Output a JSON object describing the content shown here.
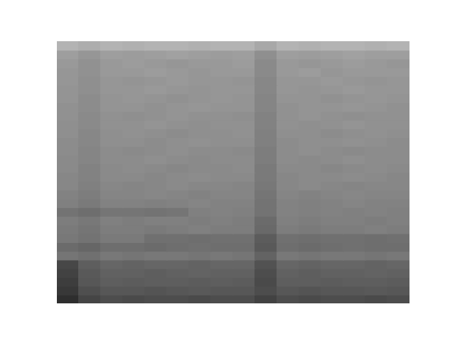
{
  "chart_data": {
    "type": "heatmap",
    "tick_labels": false,
    "grid": false,
    "zlim": [
      0,
      100
    ],
    "cells": [
      [
        30,
        32,
        30,
        31,
        30,
        30,
        31,
        30,
        30,
        34,
        30,
        31,
        30,
        30,
        31,
        30
      ],
      [
        38,
        41,
        38,
        39,
        38,
        37,
        38,
        39,
        38,
        44,
        38,
        39,
        38,
        37,
        38,
        38
      ],
      [
        40,
        43,
        40,
        39,
        40,
        41,
        40,
        40,
        39,
        46,
        40,
        41,
        40,
        39,
        40,
        41
      ],
      [
        41,
        43,
        40,
        40,
        39,
        40,
        41,
        40,
        40,
        46,
        40,
        39,
        41,
        40,
        40,
        40
      ],
      [
        41,
        44,
        41,
        42,
        41,
        40,
        41,
        41,
        42,
        47,
        41,
        41,
        40,
        41,
        42,
        41
      ],
      [
        42,
        44,
        41,
        41,
        40,
        41,
        42,
        41,
        41,
        47,
        41,
        42,
        41,
        40,
        41,
        41
      ],
      [
        42,
        45,
        42,
        41,
        42,
        43,
        42,
        41,
        42,
        48,
        42,
        42,
        43,
        42,
        41,
        42
      ],
      [
        43,
        45,
        42,
        42,
        43,
        42,
        41,
        42,
        42,
        48,
        43,
        42,
        42,
        41,
        42,
        43
      ],
      [
        43,
        46,
        43,
        44,
        43,
        42,
        43,
        43,
        44,
        49,
        43,
        42,
        43,
        44,
        43,
        43
      ],
      [
        44,
        46,
        43,
        43,
        42,
        43,
        44,
        43,
        43,
        49,
        43,
        44,
        43,
        42,
        43,
        43
      ],
      [
        44,
        47,
        44,
        43,
        44,
        45,
        44,
        44,
        43,
        50,
        44,
        44,
        45,
        44,
        43,
        44
      ],
      [
        45,
        47,
        44,
        44,
        45,
        44,
        43,
        44,
        44,
        50,
        45,
        44,
        44,
        43,
        44,
        45
      ],
      [
        45,
        48,
        45,
        46,
        45,
        44,
        45,
        45,
        46,
        51,
        45,
        44,
        45,
        46,
        45,
        45
      ],
      [
        46,
        48,
        45,
        45,
        44,
        45,
        46,
        45,
        45,
        51,
        45,
        46,
        45,
        44,
        45,
        45
      ],
      [
        46,
        49,
        46,
        45,
        46,
        47,
        46,
        46,
        45,
        52,
        46,
        46,
        47,
        46,
        45,
        46
      ],
      [
        47,
        49,
        46,
        46,
        47,
        46,
        45,
        46,
        46,
        52,
        47,
        46,
        46,
        45,
        46,
        47
      ],
      [
        47,
        50,
        47,
        48,
        47,
        46,
        47,
        47,
        48,
        53,
        47,
        46,
        47,
        48,
        47,
        47
      ],
      [
        49,
        51,
        48,
        48,
        47,
        48,
        49,
        48,
        48,
        54,
        48,
        49,
        48,
        47,
        48,
        48
      ],
      [
        50,
        52,
        49,
        49,
        50,
        49,
        48,
        49,
        49,
        55,
        49,
        50,
        49,
        48,
        49,
        49
      ],
      [
        55,
        57,
        54,
        54,
        55,
        54,
        50,
        49,
        50,
        55,
        49,
        50,
        49,
        50,
        49,
        50
      ],
      [
        51,
        53,
        50,
        51,
        50,
        50,
        51,
        50,
        51,
        58,
        50,
        51,
        50,
        50,
        51,
        50
      ],
      [
        52,
        54,
        51,
        51,
        52,
        51,
        50,
        51,
        51,
        59,
        51,
        52,
        51,
        51,
        50,
        51
      ],
      [
        53,
        55,
        52,
        52,
        56,
        56,
        57,
        56,
        56,
        64,
        56,
        57,
        56,
        56,
        57,
        56
      ],
      [
        58,
        60,
        57,
        57,
        58,
        57,
        56,
        57,
        57,
        65,
        57,
        58,
        57,
        56,
        57,
        57
      ],
      [
        54,
        56,
        53,
        54,
        53,
        53,
        54,
        53,
        54,
        61,
        53,
        54,
        53,
        53,
        54,
        53
      ],
      [
        72,
        63,
        60,
        61,
        60,
        60,
        61,
        60,
        60,
        68,
        60,
        61,
        60,
        60,
        61,
        60
      ],
      [
        74,
        65,
        62,
        62,
        63,
        62,
        61,
        62,
        62,
        70,
        62,
        63,
        62,
        62,
        61,
        62
      ],
      [
        76,
        66,
        63,
        64,
        63,
        63,
        64,
        63,
        64,
        71,
        63,
        63,
        64,
        63,
        63,
        64
      ],
      [
        78,
        69,
        66,
        66,
        67,
        66,
        65,
        66,
        66,
        70,
        66,
        67,
        66,
        66,
        65,
        66
      ],
      [
        82,
        73,
        70,
        71,
        70,
        70,
        71,
        70,
        70,
        74,
        70,
        71,
        70,
        70,
        71,
        70
      ]
    ]
  }
}
